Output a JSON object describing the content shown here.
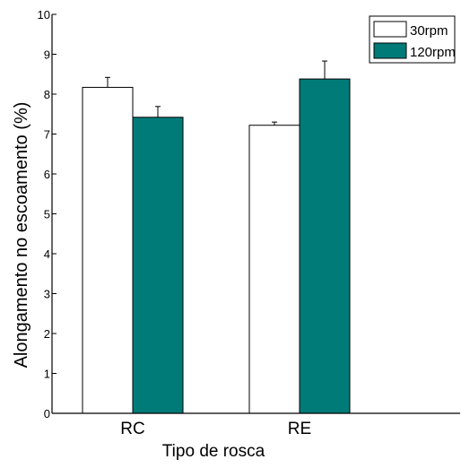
{
  "chart_data": {
    "type": "bar",
    "xlabel": "Tipo de rosca",
    "ylabel": "Alongamento no escoamento (%)",
    "categories": [
      "RC",
      "RE"
    ],
    "series": [
      {
        "name": "30rpm",
        "values": [
          8.17,
          7.22
        ],
        "errors": [
          0.25,
          0.08
        ],
        "color": "#ffffff"
      },
      {
        "name": "120rpm",
        "values": [
          7.42,
          8.38
        ],
        "errors": [
          0.27,
          0.45
        ],
        "color": "#007b78"
      }
    ],
    "ylim": [
      0,
      10
    ],
    "yticks": [
      "0",
      "1",
      "2",
      "3",
      "4",
      "5",
      "6",
      "7",
      "8",
      "9",
      "10"
    ],
    "grid": false,
    "legend_position": "top-right"
  }
}
